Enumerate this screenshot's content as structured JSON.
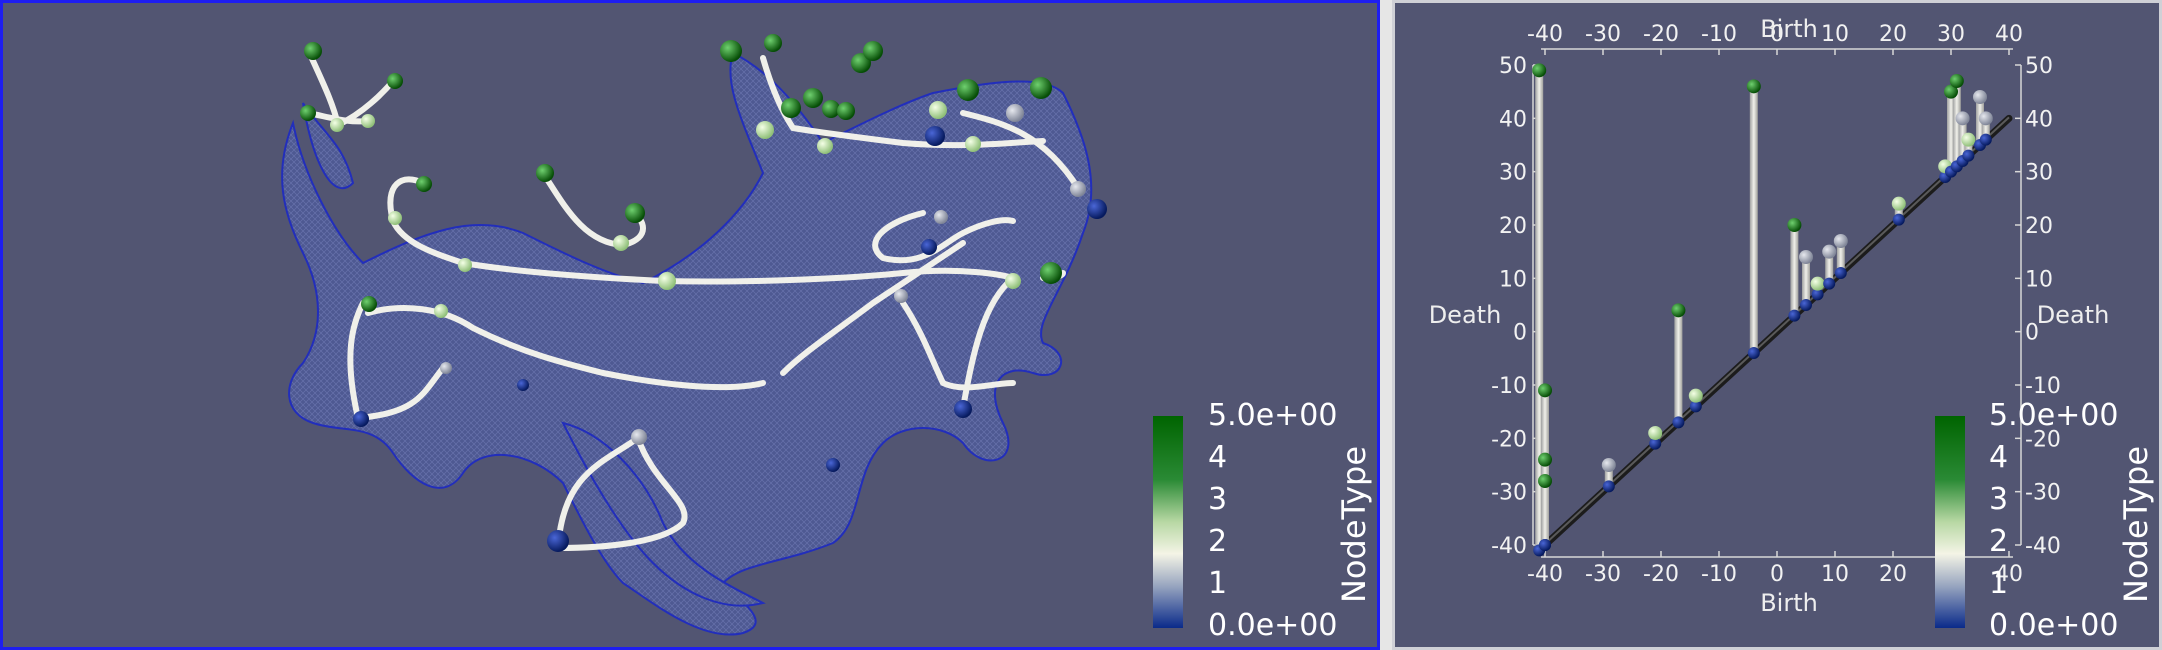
{
  "left_view": {
    "description_hidden": "",
    "colorbar": {
      "title": "NodeType",
      "max_label": "5.0e+00",
      "min_label": "0.0e+00",
      "ticks": [
        "4",
        "3",
        "2",
        "1"
      ],
      "colors": {
        "top": "#006400",
        "mid_high": "#2e8b3a",
        "mid": "#c9e0b4",
        "white": "#f2f2e6",
        "low": "#8b9bb4",
        "bottom": "#0b2a8a"
      }
    }
  },
  "right_view": {
    "colorbar": {
      "title": "NodeType",
      "max_label": "5.0e+00",
      "min_label": "0.0e+00",
      "ticks": [
        "4",
        "3",
        "2",
        "1"
      ]
    },
    "chart_data": {
      "type": "scatter",
      "title": "",
      "xlabel": "Birth",
      "ylabel": "Death",
      "xlim": [
        -42,
        42
      ],
      "ylim": [
        -42,
        50
      ],
      "x_ticks": [
        "-40",
        "-30",
        "-20",
        "-10",
        "0",
        "10",
        "20",
        "30",
        "40"
      ],
      "y_ticks_left": [
        "50",
        "40",
        "30",
        "20",
        "10",
        "0",
        "-10",
        "-20",
        "-30",
        "-40"
      ],
      "y_ticks_right": [
        "50",
        "40",
        "30",
        "20",
        "10",
        "0",
        "-10",
        "-20",
        "-30",
        "-40"
      ],
      "pairs": [
        {
          "birth": -41,
          "death": 49
        },
        {
          "birth": -40,
          "death": -11
        },
        {
          "birth": -40,
          "death": -24
        },
        {
          "birth": -40,
          "death": -28
        },
        {
          "birth": -29,
          "death": -25
        },
        {
          "birth": -21,
          "death": -19
        },
        {
          "birth": -17,
          "death": 4
        },
        {
          "birth": -14,
          "death": -12
        },
        {
          "birth": -4,
          "death": 46
        },
        {
          "birth": 3,
          "death": 20
        },
        {
          "birth": 5,
          "death": 14
        },
        {
          "birth": 7,
          "death": 9
        },
        {
          "birth": 9,
          "death": 15
        },
        {
          "birth": 11,
          "death": 17
        },
        {
          "birth": 21,
          "death": 24
        },
        {
          "birth": 29,
          "death": 31
        },
        {
          "birth": 30,
          "death": 45
        },
        {
          "birth": 31,
          "death": 47
        },
        {
          "birth": 32,
          "death": 40
        },
        {
          "birth": 33,
          "death": 36
        },
        {
          "birth": 35,
          "death": 44
        },
        {
          "birth": 36,
          "death": 40
        }
      ]
    }
  }
}
